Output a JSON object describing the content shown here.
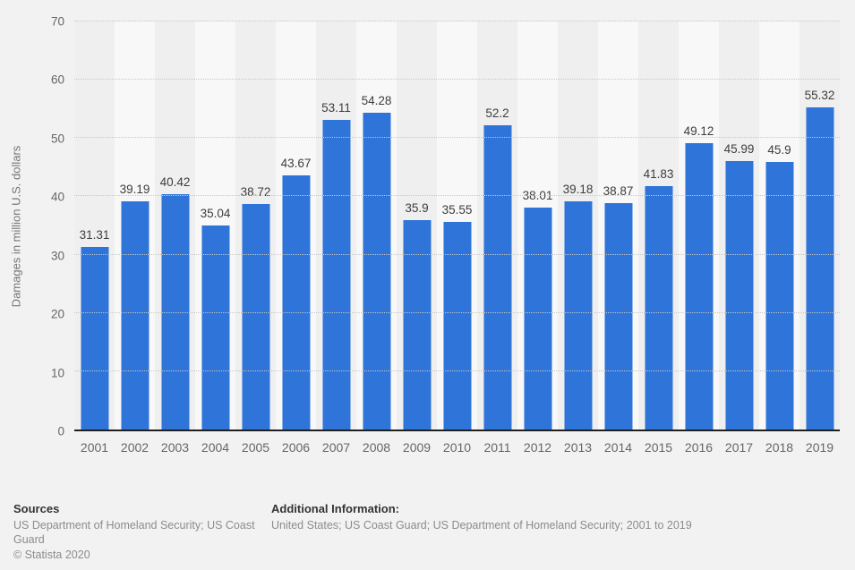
{
  "chart_data": {
    "type": "bar",
    "title": "",
    "xlabel": "",
    "ylabel": "Damages in million U.S. dollars",
    "categories": [
      "2001",
      "2002",
      "2003",
      "2004",
      "2005",
      "2006",
      "2007",
      "2008",
      "2009",
      "2010",
      "2011",
      "2012",
      "2013",
      "2014",
      "2015",
      "2016",
      "2017",
      "2018",
      "2019"
    ],
    "values": [
      31.31,
      39.19,
      40.42,
      35.04,
      38.72,
      43.67,
      53.11,
      54.28,
      35.9,
      35.55,
      52.2,
      38.01,
      39.18,
      38.87,
      41.83,
      49.12,
      45.99,
      45.9,
      55.32
    ],
    "ylim": [
      0,
      70
    ],
    "yticks": [
      0,
      10,
      20,
      30,
      40,
      50,
      60,
      70
    ],
    "grid": "horizontal-dotted",
    "legend": "none"
  },
  "colors": {
    "bar": "#2e74d9",
    "background": "#f2f2f2",
    "stripe_dark": "#efefef",
    "stripe_light": "#f8f8f8",
    "gridline": "#c7c7c7",
    "axis_line": "#1f1f1f",
    "tick_label": "#666666",
    "value_label": "#3d3d3d"
  },
  "footer": {
    "sources_label": "Sources",
    "sources_text": "US Department of Homeland Security; US Coast Guard",
    "copyright": "© Statista 2020",
    "additional_label": "Additional Information:",
    "additional_text": "United States; US Coast Guard; US Department of Homeland Security; 2001 to 2019"
  }
}
